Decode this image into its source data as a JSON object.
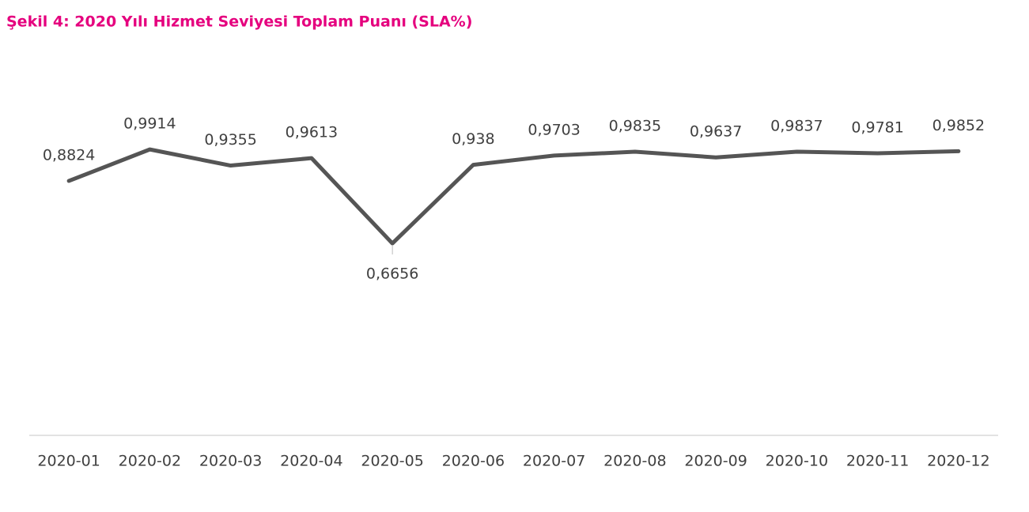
{
  "chart_data": {
    "type": "line",
    "title": "Şekil 4: 2020 Yılı Hizmet Seviyesi Toplam Puanı (SLA%)",
    "categories": [
      "2020-01",
      "2020-02",
      "2020-03",
      "2020-04",
      "2020-05",
      "2020-06",
      "2020-07",
      "2020-08",
      "2020-09",
      "2020-10",
      "2020-11",
      "2020-12"
    ],
    "series": [
      {
        "name": "SLA%",
        "color": "#555555",
        "values": [
          0.8824,
          0.9914,
          0.9355,
          0.9613,
          0.6656,
          0.938,
          0.9703,
          0.9835,
          0.9637,
          0.9837,
          0.9781,
          0.9852
        ],
        "value_labels": [
          "0,8824",
          "0,9914",
          "0,9355",
          "0,9613",
          "0,6656",
          "0,938",
          "0,9703",
          "0,9835",
          "0,9637",
          "0,9837",
          "0,9781",
          "0,9852"
        ]
      }
    ],
    "ylim": [
      0,
      1.2
    ]
  }
}
